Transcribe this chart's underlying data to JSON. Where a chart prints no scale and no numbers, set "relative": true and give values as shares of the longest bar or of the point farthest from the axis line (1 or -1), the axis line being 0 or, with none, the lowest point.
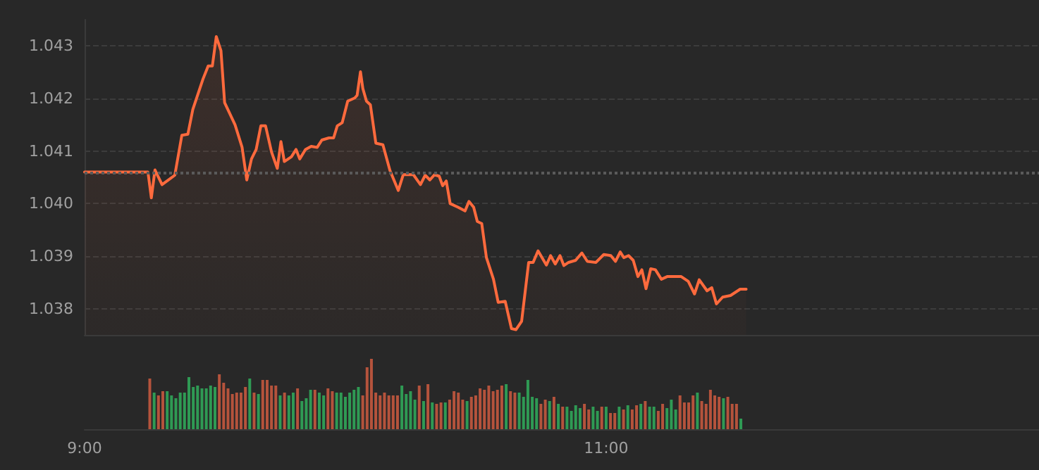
{
  "chart_data": [
    {
      "type": "area",
      "xlim": [
        9,
        12.66
      ],
      "ylim": [
        1.0375,
        1.0435
      ],
      "yticks": [
        {
          "value": 1.038,
          "label": "1.038"
        },
        {
          "value": 1.039,
          "label": "1.039"
        },
        {
          "value": 1.04,
          "label": "1.040"
        },
        {
          "value": 1.041,
          "label": "1.041"
        },
        {
          "value": 1.042,
          "label": "1.042"
        },
        {
          "value": 1.043,
          "label": "1.043"
        }
      ],
      "grid": "y",
      "tick_labels": "y",
      "marker": "none",
      "line_style": "solid",
      "ref_lines": [
        {
          "axis": "y",
          "value": 1.0406,
          "line_style": "dotted",
          "color": "#5a5a5a"
        }
      ],
      "x": [
        9.0,
        9.243,
        9.256,
        9.27,
        9.297,
        9.346,
        9.373,
        9.396,
        9.415,
        9.454,
        9.474,
        9.49,
        9.505,
        9.523,
        9.537,
        9.558,
        9.577,
        9.604,
        9.622,
        9.64,
        9.658,
        9.676,
        9.694,
        9.717,
        9.739,
        9.753,
        9.766,
        9.793,
        9.811,
        9.825,
        9.847,
        9.869,
        9.892,
        9.91,
        9.937,
        9.955,
        9.969,
        9.988,
        10.009,
        10.036,
        10.045,
        10.058,
        10.067,
        10.081,
        10.096,
        10.117,
        10.144,
        10.171,
        10.203,
        10.222,
        10.261,
        10.288,
        10.306,
        10.324,
        10.342,
        10.36,
        10.373,
        10.387,
        10.402,
        10.432,
        10.459,
        10.474,
        10.492,
        10.506,
        10.523,
        10.541,
        10.568,
        10.586,
        10.613,
        10.637,
        10.654,
        10.676,
        10.703,
        10.72,
        10.739,
        10.771,
        10.787,
        10.805,
        10.823,
        10.838,
        10.856,
        10.883,
        10.907,
        10.928,
        10.961,
        10.991,
        11.018,
        11.036,
        11.054,
        11.068,
        11.086,
        11.104,
        11.122,
        11.137,
        11.153,
        11.171,
        11.189,
        11.212,
        11.234,
        11.288,
        11.315,
        11.339,
        11.357,
        11.387,
        11.405,
        11.423,
        11.447,
        11.477,
        11.514,
        11.537
      ],
      "series": [
        {
          "color": "#ff6a3d",
          "values": [
            1.0406,
            1.0406,
            1.04011,
            1.04064,
            1.04036,
            1.04054,
            1.0413,
            1.04132,
            1.04179,
            1.04237,
            1.04262,
            1.04262,
            1.04318,
            1.04291,
            1.04192,
            1.0417,
            1.0415,
            1.04107,
            1.04045,
            1.04085,
            1.04103,
            1.04148,
            1.04148,
            1.04098,
            1.04067,
            1.04118,
            1.0408,
            1.04089,
            1.04103,
            1.04085,
            1.04103,
            1.04109,
            1.04107,
            1.04121,
            1.04125,
            1.04125,
            1.04148,
            1.04154,
            1.04195,
            1.04201,
            1.04206,
            1.04251,
            1.04219,
            1.04195,
            1.04188,
            1.04115,
            1.04112,
            1.04063,
            1.04025,
            1.04055,
            1.04055,
            1.04036,
            1.04054,
            1.04045,
            1.04055,
            1.04052,
            1.04034,
            1.04043,
            1.04,
            1.03993,
            1.03986,
            1.04004,
            1.03993,
            1.03966,
            1.03962,
            1.03897,
            1.03856,
            1.03812,
            1.03814,
            1.03762,
            1.0376,
            1.03776,
            1.03888,
            1.03888,
            1.0391,
            1.03883,
            1.03901,
            1.03885,
            1.03901,
            1.03882,
            1.03888,
            1.03892,
            1.03906,
            1.0389,
            1.03888,
            1.03903,
            1.03901,
            1.0389,
            1.03908,
            1.03897,
            1.03901,
            1.03892,
            1.03861,
            1.03874,
            1.03838,
            1.03876,
            1.03874,
            1.03856,
            1.03861,
            1.03861,
            1.03852,
            1.03828,
            1.03855,
            1.03834,
            1.0384,
            1.03809,
            1.03822,
            1.03825,
            1.03837,
            1.03837
          ]
        }
      ]
    },
    {
      "type": "bar",
      "relative": true,
      "xlim": [
        9,
        12.66
      ],
      "tick_labels": "x",
      "xticks": [
        {
          "value": 9,
          "label": "9:00"
        },
        {
          "value": 11,
          "label": "11:00"
        }
      ],
      "x": [
        9.25,
        9.2667,
        9.2833,
        9.3,
        9.3167,
        9.3333,
        9.35,
        9.3667,
        9.3833,
        9.4,
        9.4167,
        9.4333,
        9.45,
        9.4667,
        9.4833,
        9.5,
        9.5167,
        9.5333,
        9.55,
        9.5667,
        9.5833,
        9.6,
        9.6167,
        9.6333,
        9.65,
        9.6667,
        9.6833,
        9.7,
        9.7167,
        9.7333,
        9.75,
        9.7667,
        9.7833,
        9.8,
        9.8167,
        9.8333,
        9.85,
        9.8667,
        9.8833,
        9.9,
        9.9167,
        9.9333,
        9.95,
        9.9667,
        9.9833,
        10.0,
        10.0167,
        10.0333,
        10.05,
        10.0667,
        10.0833,
        10.1,
        10.1167,
        10.1333,
        10.15,
        10.1667,
        10.1833,
        10.2,
        10.2167,
        10.2333,
        10.25,
        10.2667,
        10.2833,
        10.3,
        10.3167,
        10.3333,
        10.35,
        10.3667,
        10.3833,
        10.4,
        10.4167,
        10.4333,
        10.45,
        10.4667,
        10.4833,
        10.5,
        10.5167,
        10.5333,
        10.55,
        10.5667,
        10.5833,
        10.6,
        10.6167,
        10.6333,
        10.65,
        10.6667,
        10.6833,
        10.7,
        10.7167,
        10.7333,
        10.75,
        10.7667,
        10.7833,
        10.8,
        10.8167,
        10.8333,
        10.85,
        10.8667,
        10.8833,
        10.9,
        10.9167,
        10.9333,
        10.95,
        10.9667,
        10.9833,
        11.0,
        11.0167,
        11.0333,
        11.05,
        11.0667,
        11.0833,
        11.1,
        11.1167,
        11.1333,
        11.15,
        11.1667,
        11.1833,
        11.2,
        11.2167,
        11.2333,
        11.25,
        11.2667,
        11.2833,
        11.3,
        11.3167,
        11.3333,
        11.35,
        11.3667,
        11.3833,
        11.4,
        11.4167,
        11.4333,
        11.45,
        11.4667,
        11.4833,
        11.5,
        11.5167
      ],
      "values": [
        0.72,
        0.52,
        0.48,
        0.54,
        0.54,
        0.48,
        0.44,
        0.52,
        0.52,
        0.74,
        0.6,
        0.62,
        0.58,
        0.58,
        0.62,
        0.6,
        0.78,
        0.66,
        0.58,
        0.5,
        0.52,
        0.52,
        0.6,
        0.72,
        0.52,
        0.5,
        0.7,
        0.7,
        0.62,
        0.62,
        0.48,
        0.52,
        0.48,
        0.52,
        0.58,
        0.4,
        0.44,
        0.56,
        0.56,
        0.52,
        0.48,
        0.58,
        0.54,
        0.52,
        0.52,
        0.46,
        0.52,
        0.56,
        0.6,
        0.48,
        0.88,
        1,
        0.52,
        0.48,
        0.52,
        0.48,
        0.48,
        0.48,
        0.62,
        0.5,
        0.54,
        0.42,
        0.62,
        0.4,
        0.64,
        0.38,
        0.36,
        0.38,
        0.38,
        0.42,
        0.54,
        0.52,
        0.42,
        0.4,
        0.46,
        0.48,
        0.58,
        0.56,
        0.62,
        0.54,
        0.56,
        0.62,
        0.64,
        0.54,
        0.52,
        0.52,
        0.46,
        0.7,
        0.46,
        0.44,
        0.36,
        0.42,
        0.4,
        0.46,
        0.36,
        0.32,
        0.32,
        0.26,
        0.34,
        0.3,
        0.36,
        0.28,
        0.32,
        0.26,
        0.32,
        0.32,
        0.23,
        0.23,
        0.32,
        0.28,
        0.34,
        0.28,
        0.34,
        0.36,
        0.4,
        0.32,
        0.32,
        0.26,
        0.36,
        0.3,
        0.42,
        0.28,
        0.48,
        0.38,
        0.38,
        0.48,
        0.52,
        0.4,
        0.36,
        0.56,
        0.48,
        0.46,
        0.44,
        0.46,
        0.36,
        0.36,
        0.15
      ],
      "colors": [
        "#b5533c",
        "#2f9a54",
        "#b5533c",
        "#b5533c",
        "#2f9a54",
        "#2f9a54",
        "#2f9a54",
        "#2f9a54",
        "#2f9a54",
        "#2f9a54",
        "#2f9a54",
        "#2f9a54",
        "#2f9a54",
        "#2f9a54",
        "#2f9a54",
        "#2f9a54",
        "#b5533c",
        "#b5533c",
        "#b5533c",
        "#b5533c",
        "#b5533c",
        "#b5533c",
        "#b5533c",
        "#2f9a54",
        "#b5533c",
        "#2f9a54",
        "#b5533c",
        "#b5533c",
        "#b5533c",
        "#b5533c",
        "#2f9a54",
        "#b5533c",
        "#2f9a54",
        "#2f9a54",
        "#b5533c",
        "#2f9a54",
        "#2f9a54",
        "#2f9a54",
        "#b5533c",
        "#2f9a54",
        "#2f9a54",
        "#b5533c",
        "#b5533c",
        "#2f9a54",
        "#2f9a54",
        "#2f9a54",
        "#2f9a54",
        "#2f9a54",
        "#2f9a54",
        "#b5533c",
        "#b5533c",
        "#b5533c",
        "#b5533c",
        "#b5533c",
        "#b5533c",
        "#b5533c",
        "#b5533c",
        "#b5533c",
        "#2f9a54",
        "#2f9a54",
        "#2f9a54",
        "#2f9a54",
        "#b5533c",
        "#2f9a54",
        "#b5533c",
        "#2f9a54",
        "#b5533c",
        "#b5533c",
        "#2f9a54",
        "#b5533c",
        "#b5533c",
        "#b5533c",
        "#b5533c",
        "#2f9a54",
        "#b5533c",
        "#b5533c",
        "#b5533c",
        "#b5533c",
        "#b5533c",
        "#b5533c",
        "#b5533c",
        "#b5533c",
        "#2f9a54",
        "#b5533c",
        "#b5533c",
        "#2f9a54",
        "#2f9a54",
        "#2f9a54",
        "#2f9a54",
        "#2f9a54",
        "#b5533c",
        "#b5533c",
        "#2f9a54",
        "#b5533c",
        "#2f9a54",
        "#b5533c",
        "#2f9a54",
        "#2f9a54",
        "#2f9a54",
        "#2f9a54",
        "#b5533c",
        "#b5533c",
        "#2f9a54",
        "#2f9a54",
        "#b5533c",
        "#2f9a54",
        "#b5533c",
        "#b5533c",
        "#2f9a54",
        "#b5533c",
        "#2f9a54",
        "#b5533c",
        "#b5533c",
        "#2f9a54",
        "#b5533c",
        "#2f9a54",
        "#2f9a54",
        "#b5533c",
        "#b5533c",
        "#2f9a54",
        "#2f9a54",
        "#2f9a54",
        "#b5533c",
        "#b5533c",
        "#b5533c",
        "#b5533c",
        "#2f9a54",
        "#b5533c",
        "#b5533c",
        "#b5533c",
        "#b5533c",
        "#b5533c",
        "#2f9a54",
        "#b5533c",
        "#b5533c",
        "#b5533c",
        "#2f9a54"
      ]
    }
  ]
}
